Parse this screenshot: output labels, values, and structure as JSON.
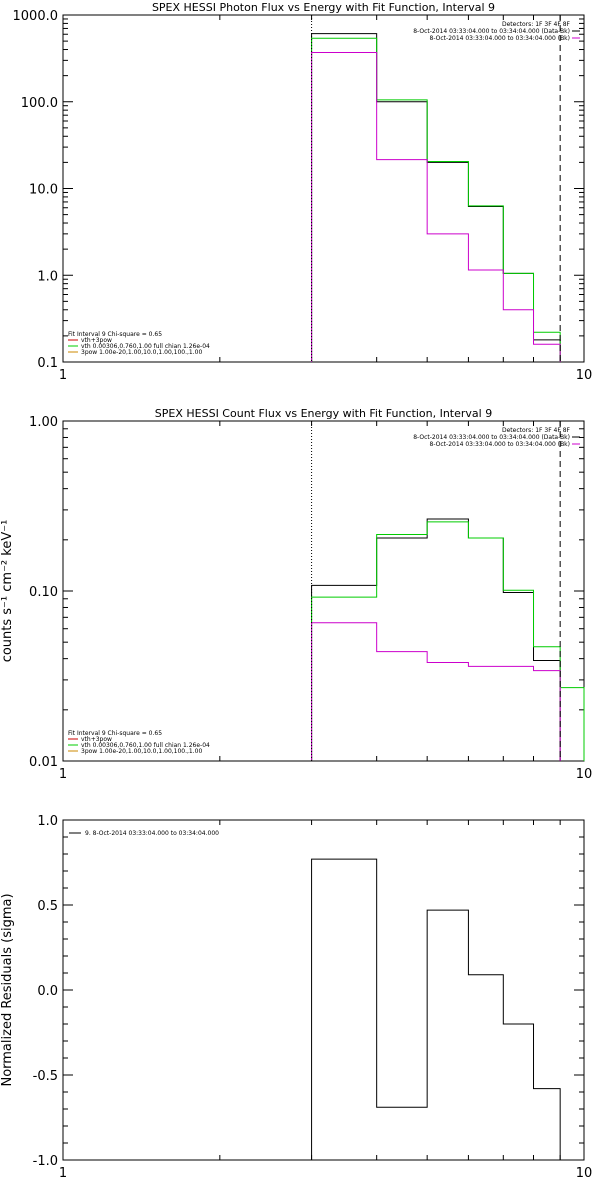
{
  "chart_data": [
    {
      "type": "line",
      "title": "SPEX HESSI Photon Flux vs Energy with Fit Function, Interval 9",
      "ylabel": "",
      "xlim": [
        1,
        10
      ],
      "ylim": [
        0.1,
        1000
      ],
      "xscale": "log",
      "yscale": "log",
      "xticks": [
        1,
        10
      ],
      "xtick_labels": [
        "1",
        "10"
      ],
      "yticks": [
        0.1,
        1,
        10,
        100,
        1000
      ],
      "ytick_labels": [
        "0.1",
        "1.0",
        "10.0",
        "100.0",
        "1000.0"
      ],
      "vlines": [
        {
          "x": 3.0,
          "style": "dotted",
          "color": "#000000"
        },
        {
          "x": 9.0,
          "style": "dashed",
          "color": "#000000"
        }
      ],
      "top_legend": {
        "placement": "top-right",
        "header": "Detectors: 1F 3F 4F 8F",
        "entries": [
          {
            "text": "8-Oct-2014 03:33:04.000 to 03:34:04.000 (Data-Bk)",
            "color": "#000000"
          },
          {
            "text": "8-Oct-2014 03:33:04.000 to 03:34:04.000 (Bk)",
            "color": "#cc00cc"
          }
        ]
      },
      "bottom_legend": {
        "placement": "bottom-left",
        "header": "Fit Interval 9   Chi-square = 0.65",
        "entries": [
          {
            "text": "vth+3pow",
            "color": "#cc0000"
          },
          {
            "text": "vth 0.00306,0.760,1.00  full chian 1.26e-04",
            "color": "#00cc00"
          },
          {
            "text": "3pow 1.00e-20,1.00,10.0,1.00,100.,1.00",
            "color": "#cc8800"
          }
        ]
      },
      "series": [
        {
          "color": "#000000",
          "edges": [
            3,
            4,
            5,
            6,
            7,
            8,
            9
          ],
          "values": [
            610,
            100,
            20,
            6.2,
            1.05,
            0.18
          ]
        },
        {
          "color": "#00cc00",
          "edges": [
            3,
            4,
            5,
            6,
            7,
            8,
            9
          ],
          "values": [
            540,
            105,
            20.5,
            6.3,
            1.05,
            0.22
          ]
        },
        {
          "color": "#cc00cc",
          "edges": [
            3,
            4,
            5,
            6,
            7,
            8,
            9
          ],
          "values": [
            370,
            21.5,
            3.0,
            1.15,
            0.4,
            0.16
          ]
        }
      ]
    },
    {
      "type": "line",
      "title": "SPEX HESSI Count Flux vs Energy with Fit Function, Interval 9",
      "ylabel": "counts s⁻¹ cm⁻² keV⁻¹",
      "xlim": [
        1,
        10
      ],
      "ylim": [
        0.01,
        1
      ],
      "xscale": "log",
      "yscale": "log",
      "xticks": [
        1,
        10
      ],
      "xtick_labels": [
        "1",
        "10"
      ],
      "yticks": [
        0.01,
        0.1,
        1
      ],
      "ytick_labels": [
        "0.01",
        "0.10",
        "1.00"
      ],
      "vlines": [
        {
          "x": 3.0,
          "style": "dotted",
          "color": "#000000"
        },
        {
          "x": 9.0,
          "style": "dashed",
          "color": "#000000"
        }
      ],
      "top_legend": {
        "placement": "top-right",
        "header": "Detectors: 1F 3F 4F 8F",
        "entries": [
          {
            "text": "8-Oct-2014 03:33:04.000 to 03:34:04.000 (Data-Bk)",
            "color": "#000000"
          },
          {
            "text": "8-Oct-2014 03:33:04.000 to 03:34:04.000 (Bk)",
            "color": "#cc00cc"
          }
        ]
      },
      "bottom_legend": {
        "placement": "bottom-left",
        "header": "Fit Interval 9   Chi-square = 0.65",
        "entries": [
          {
            "text": "vth+3pow",
            "color": "#cc0000"
          },
          {
            "text": "vth 0.00306,0.760,1.00  full chian 1.26e-04",
            "color": "#00cc00"
          },
          {
            "text": "3pow 1.00e-20,1.00,10.0,1.00,100.,1.00",
            "color": "#cc8800"
          }
        ]
      },
      "series": [
        {
          "color": "#000000",
          "edges": [
            3,
            4,
            5,
            6,
            7,
            8,
            9
          ],
          "values": [
            0.108,
            0.205,
            0.265,
            0.205,
            0.098,
            0.039
          ]
        },
        {
          "color": "#00cc00",
          "edges": [
            3,
            4,
            5,
            6,
            7,
            8,
            9,
            10
          ],
          "values": [
            0.092,
            0.215,
            0.255,
            0.205,
            0.101,
            0.047,
            0.027
          ]
        },
        {
          "color": "#cc00cc",
          "edges": [
            3,
            4,
            5,
            6,
            7,
            8,
            9
          ],
          "values": [
            0.065,
            0.044,
            0.038,
            0.036,
            0.036,
            0.034
          ]
        }
      ]
    },
    {
      "type": "line",
      "title": "",
      "ylabel": "Normalized Residuals (sigma)",
      "xlim": [
        1,
        10
      ],
      "ylim": [
        -1,
        1
      ],
      "xscale": "log",
      "yscale": "linear",
      "xticks": [
        1,
        10
      ],
      "xtick_labels": [
        "1",
        "10"
      ],
      "yticks": [
        -1,
        -0.5,
        0,
        0.5,
        1
      ],
      "ytick_labels": [
        "-1.0",
        "-0.5",
        "0.0",
        "0.5",
        "1.0"
      ],
      "vlines": [],
      "top_legend": {
        "placement": "top-left",
        "header": "",
        "entries": [
          {
            "text": "9.  8-Oct-2014 03:33:04.000 to 03:34:04.000",
            "color": "#000000"
          }
        ]
      },
      "bottom_legend": null,
      "series": [
        {
          "color": "#000000",
          "edges": [
            3,
            4,
            5,
            6,
            7,
            8,
            9
          ],
          "values": [
            0.77,
            -0.69,
            0.47,
            0.09,
            -0.2,
            -0.58
          ]
        }
      ]
    }
  ]
}
